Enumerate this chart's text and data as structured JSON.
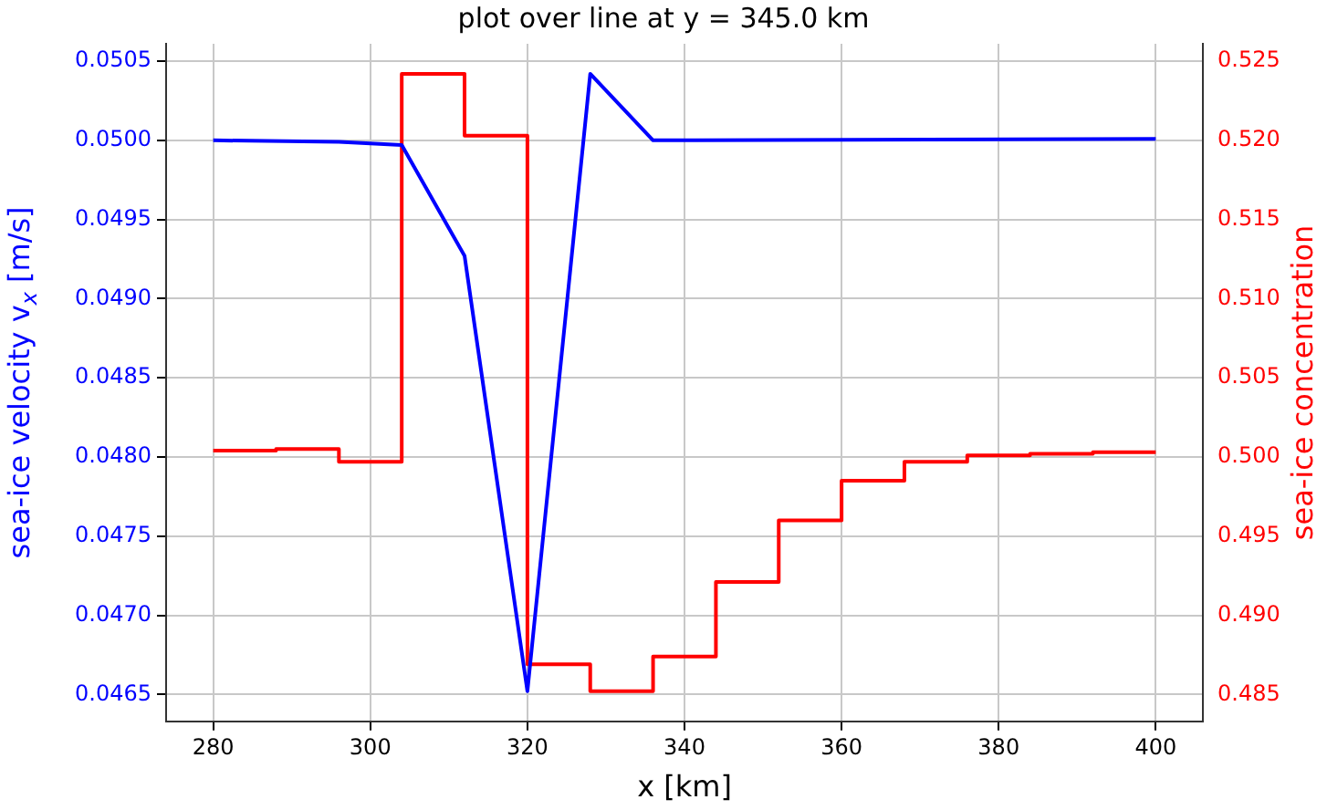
{
  "chart_data": {
    "type": "line",
    "title": "plot over line at y = 345.0 km",
    "xlabel": "x [km]",
    "ylabel": "sea-ice velocity v$_{x}$ [m/s]",
    "y2label": "sea-ice concentration",
    "x": [
      280,
      296,
      304,
      312,
      320,
      328,
      336,
      400
    ],
    "series": [
      {
        "color": "#0000ff",
        "values": [
          0.05,
          0.04999,
          0.04997,
          0.04927,
          0.04652,
          0.05042,
          0.05,
          0.05001
        ]
      },
      {
        "type": "step",
        "axis": "y2",
        "color": "#ff0000",
        "x": [
          280,
          288,
          296,
          304,
          312,
          320,
          328,
          336,
          344,
          352,
          360,
          368,
          376,
          384,
          392,
          400
        ],
        "values": [
          0.5004,
          0.5005,
          0.4997,
          0.5242,
          0.5203,
          0.4869,
          0.4852,
          0.4874,
          0.4921,
          0.496,
          0.4985,
          0.4997,
          0.5001,
          0.5002,
          0.5003,
          0.5003
        ]
      }
    ],
    "xlim": [
      274,
      406
    ],
    "xticks": [
      280,
      300,
      320,
      340,
      360,
      380,
      400
    ],
    "ylim": [
      0.04633,
      0.05061
    ],
    "yticks": [
      {
        "value": 0.0465,
        "label": "0.0465"
      },
      {
        "value": 0.047,
        "label": "0.0470"
      },
      {
        "value": 0.0475,
        "label": "0.0475"
      },
      {
        "value": 0.048,
        "label": "0.0480"
      },
      {
        "value": 0.0485,
        "label": "0.0485"
      },
      {
        "value": 0.049,
        "label": "0.0490"
      },
      {
        "value": 0.0495,
        "label": "0.0495"
      },
      {
        "value": 0.05,
        "label": "0.0500"
      },
      {
        "value": 0.0505,
        "label": "0.0505"
      }
    ],
    "y2lim": [
      0.4833,
      0.5261
    ],
    "y2ticks": [
      {
        "value": 0.485,
        "label": "0.485"
      },
      {
        "value": 0.49,
        "label": "0.490"
      },
      {
        "value": 0.495,
        "label": "0.495"
      },
      {
        "value": 0.5,
        "label": "0.500"
      },
      {
        "value": 0.505,
        "label": "0.505"
      },
      {
        "value": 0.51,
        "label": "0.510"
      },
      {
        "value": 0.515,
        "label": "0.515"
      },
      {
        "value": 0.52,
        "label": "0.520"
      },
      {
        "value": 0.525,
        "label": "0.525"
      }
    ],
    "grid": true,
    "legend": false,
    "marker": "none",
    "line_style": "solid"
  }
}
